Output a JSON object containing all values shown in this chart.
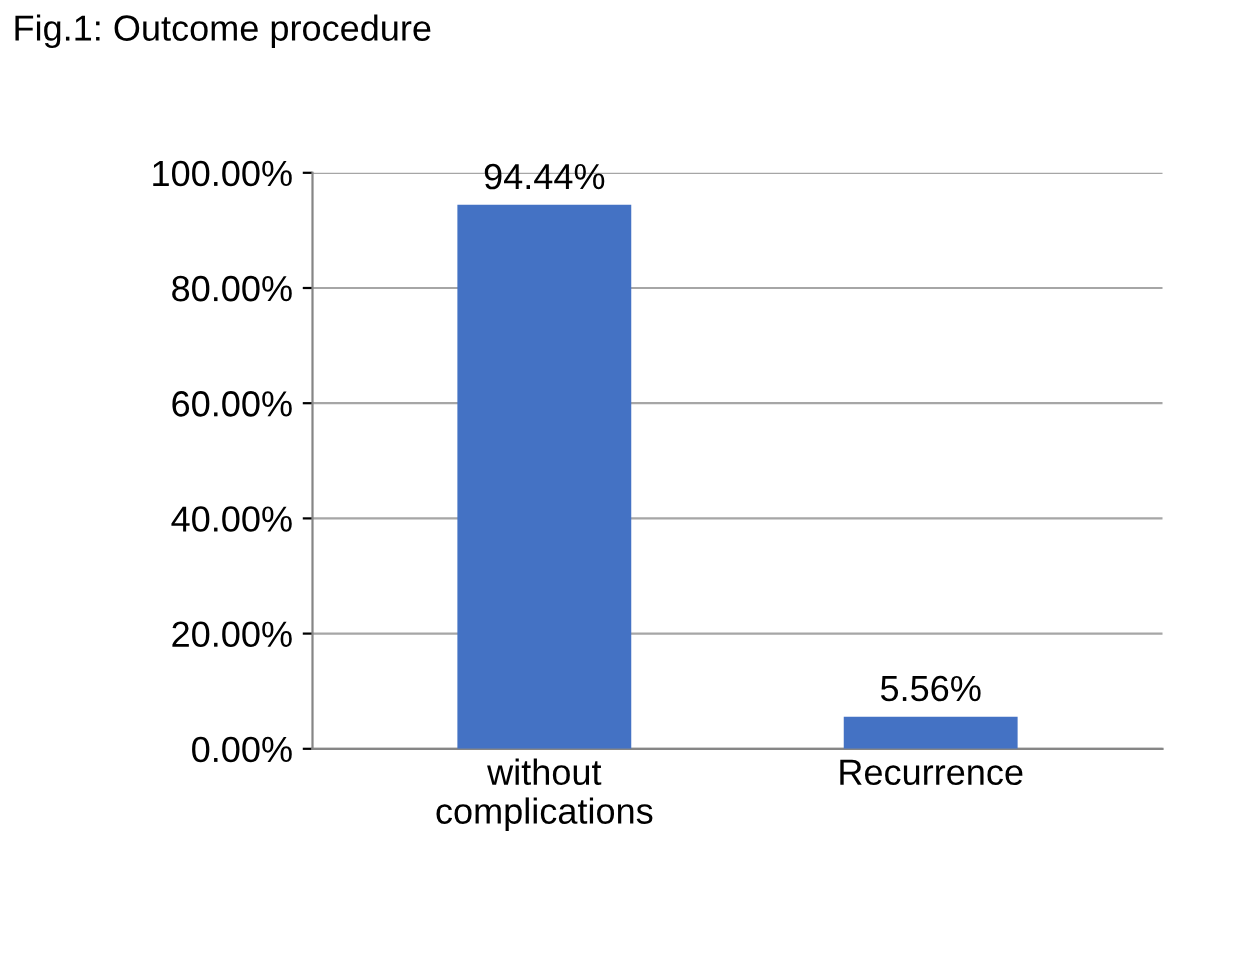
{
  "chart_data": {
    "type": "bar",
    "title": "Fig.1: Outcome procedure",
    "categories": [
      "without\ncomplications",
      "Recurrence"
    ],
    "values": [
      94.44,
      5.56
    ],
    "value_labels": [
      "94.44%",
      "5.56%"
    ],
    "color": "#4472c4",
    "ylim": [
      0,
      100
    ],
    "yticks": [
      {
        "value": 0,
        "label": "0.00%"
      },
      {
        "value": 20,
        "label": "20.00%"
      },
      {
        "value": 40,
        "label": "40.00%"
      },
      {
        "value": 60,
        "label": "60.00%"
      },
      {
        "value": 80,
        "label": "80.00%"
      },
      {
        "value": 100,
        "label": "100.00%"
      }
    ],
    "grid": "y"
  }
}
